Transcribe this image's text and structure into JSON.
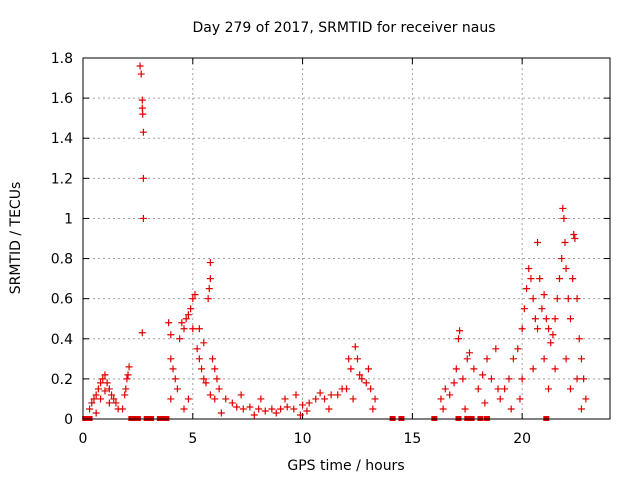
{
  "chart_data": {
    "type": "scatter",
    "title": "Day 279 of 2017, SRMTID for receiver naus",
    "xlabel": "GPS time / hours",
    "ylabel": "SRMTID / TECUs",
    "xlim": [
      0,
      24
    ],
    "ylim": [
      0,
      1.8
    ],
    "x_ticks": [
      0,
      5,
      10,
      15,
      20
    ],
    "y_ticks": [
      0,
      0.2,
      0.4,
      0.6,
      0.8,
      1,
      1.2,
      1.4,
      1.6,
      1.8
    ],
    "x_tick_labels": [
      "0",
      "5",
      "10",
      "15",
      "20"
    ],
    "y_tick_labels": [
      "0",
      "0.2",
      "0.4",
      "0.6",
      "0.8",
      "1",
      "1.2",
      "1.4",
      "1.6",
      "1.8"
    ],
    "grid": true,
    "marker": "+",
    "marker_color": "#e00000",
    "series": [
      {
        "name": "SRMTID",
        "points": [
          [
            0.3,
            0.05
          ],
          [
            0.4,
            0.08
          ],
          [
            0.5,
            0.1
          ],
          [
            0.6,
            0.12
          ],
          [
            0.7,
            0.15
          ],
          [
            0.8,
            0.18
          ],
          [
            0.9,
            0.2
          ],
          [
            1.0,
            0.22
          ],
          [
            1.1,
            0.18
          ],
          [
            1.2,
            0.15
          ],
          [
            1.3,
            0.12
          ],
          [
            1.4,
            0.1
          ],
          [
            1.5,
            0.08
          ],
          [
            1.6,
            0.05
          ],
          [
            0.6,
            0.03
          ],
          [
            0.8,
            0.1
          ],
          [
            1.0,
            0.14
          ],
          [
            1.2,
            0.08
          ],
          [
            1.8,
            0.05
          ],
          [
            1.9,
            0.12
          ],
          [
            2.0,
            0.2
          ],
          [
            2.1,
            0.26
          ],
          [
            1.95,
            0.15
          ],
          [
            2.05,
            0.22
          ],
          [
            2.6,
            1.76
          ],
          [
            2.65,
            1.72
          ],
          [
            2.7,
            1.59
          ],
          [
            2.7,
            1.55
          ],
          [
            2.72,
            1.52
          ],
          [
            2.75,
            1.43
          ],
          [
            2.75,
            1.2
          ],
          [
            2.75,
            1.0
          ],
          [
            2.7,
            0.43
          ],
          [
            3.9,
            0.48
          ],
          [
            4.0,
            0.42
          ],
          [
            4.0,
            0.3
          ],
          [
            4.1,
            0.25
          ],
          [
            4.2,
            0.2
          ],
          [
            4.3,
            0.15
          ],
          [
            4.0,
            0.1
          ],
          [
            4.4,
            0.4
          ],
          [
            4.5,
            0.48
          ],
          [
            4.6,
            0.45
          ],
          [
            4.7,
            0.5
          ],
          [
            4.8,
            0.52
          ],
          [
            4.9,
            0.55
          ],
          [
            5.0,
            0.6
          ],
          [
            5.1,
            0.62
          ],
          [
            5.0,
            0.45
          ],
          [
            5.2,
            0.35
          ],
          [
            5.3,
            0.3
          ],
          [
            5.4,
            0.25
          ],
          [
            5.5,
            0.2
          ],
          [
            5.6,
            0.18
          ],
          [
            5.5,
            0.38
          ],
          [
            5.3,
            0.45
          ],
          [
            4.8,
            0.1
          ],
          [
            4.6,
            0.05
          ],
          [
            5.8,
            0.78
          ],
          [
            5.8,
            0.7
          ],
          [
            5.75,
            0.65
          ],
          [
            5.7,
            0.6
          ],
          [
            5.9,
            0.3
          ],
          [
            6.0,
            0.25
          ],
          [
            6.1,
            0.2
          ],
          [
            6.2,
            0.15
          ],
          [
            5.8,
            0.12
          ],
          [
            6.0,
            0.1
          ],
          [
            6.5,
            0.1
          ],
          [
            6.8,
            0.08
          ],
          [
            7.0,
            0.06
          ],
          [
            7.3,
            0.05
          ],
          [
            7.6,
            0.06
          ],
          [
            8.0,
            0.05
          ],
          [
            8.3,
            0.04
          ],
          [
            8.6,
            0.05
          ],
          [
            9.0,
            0.05
          ],
          [
            9.3,
            0.06
          ],
          [
            9.6,
            0.05
          ],
          [
            10.0,
            0.07
          ],
          [
            10.3,
            0.08
          ],
          [
            10.6,
            0.1
          ],
          [
            11.0,
            0.1
          ],
          [
            11.3,
            0.12
          ],
          [
            11.6,
            0.12
          ],
          [
            12.0,
            0.15
          ],
          [
            12.2,
            0.25
          ],
          [
            12.4,
            0.36
          ],
          [
            12.5,
            0.3
          ],
          [
            12.7,
            0.2
          ],
          [
            12.9,
            0.18
          ],
          [
            13.1,
            0.15
          ],
          [
            13.3,
            0.1
          ],
          [
            7.2,
            0.12
          ],
          [
            8.1,
            0.1
          ],
          [
            9.2,
            0.1
          ],
          [
            9.7,
            0.12
          ],
          [
            10.2,
            0.04
          ],
          [
            11.2,
            0.05
          ],
          [
            12.3,
            0.1
          ],
          [
            13.2,
            0.05
          ],
          [
            6.3,
            0.03
          ],
          [
            7.8,
            0.02
          ],
          [
            8.8,
            0.03
          ],
          [
            9.9,
            0.02
          ],
          [
            10.8,
            0.13
          ],
          [
            11.8,
            0.15
          ],
          [
            12.1,
            0.3
          ],
          [
            12.6,
            0.22
          ],
          [
            13.0,
            0.25
          ],
          [
            16.3,
            0.1
          ],
          [
            16.5,
            0.15
          ],
          [
            16.7,
            0.12
          ],
          [
            16.9,
            0.18
          ],
          [
            17.0,
            0.25
          ],
          [
            17.1,
            0.4
          ],
          [
            17.15,
            0.44
          ],
          [
            17.3,
            0.2
          ],
          [
            17.5,
            0.3
          ],
          [
            17.6,
            0.33
          ],
          [
            17.8,
            0.25
          ],
          [
            18.0,
            0.15
          ],
          [
            18.2,
            0.22
          ],
          [
            18.4,
            0.3
          ],
          [
            18.6,
            0.2
          ],
          [
            18.8,
            0.35
          ],
          [
            18.9,
            0.15
          ],
          [
            16.4,
            0.05
          ],
          [
            17.4,
            0.05
          ],
          [
            18.3,
            0.08
          ],
          [
            19.0,
            0.1
          ],
          [
            19.2,
            0.15
          ],
          [
            19.4,
            0.2
          ],
          [
            19.6,
            0.3
          ],
          [
            19.8,
            0.35
          ],
          [
            20.0,
            0.45
          ],
          [
            20.1,
            0.55
          ],
          [
            20.2,
            0.65
          ],
          [
            20.3,
            0.75
          ],
          [
            20.4,
            0.7
          ],
          [
            20.5,
            0.6
          ],
          [
            20.6,
            0.5
          ],
          [
            20.7,
            0.45
          ],
          [
            20.7,
            0.88
          ],
          [
            20.8,
            0.7
          ],
          [
            20.9,
            0.55
          ],
          [
            21.0,
            0.62
          ],
          [
            21.1,
            0.5
          ],
          [
            21.2,
            0.45
          ],
          [
            21.3,
            0.38
          ],
          [
            21.4,
            0.42
          ],
          [
            21.5,
            0.5
          ],
          [
            21.6,
            0.6
          ],
          [
            21.7,
            0.7
          ],
          [
            21.8,
            0.8
          ],
          [
            21.85,
            1.05
          ],
          [
            21.9,
            1.0
          ],
          [
            21.95,
            0.88
          ],
          [
            22.0,
            0.75
          ],
          [
            22.1,
            0.6
          ],
          [
            22.2,
            0.5
          ],
          [
            22.3,
            0.7
          ],
          [
            22.35,
            0.92
          ],
          [
            22.4,
            0.9
          ],
          [
            22.5,
            0.6
          ],
          [
            22.6,
            0.4
          ],
          [
            22.7,
            0.3
          ],
          [
            22.8,
            0.2
          ],
          [
            22.9,
            0.1
          ],
          [
            19.5,
            0.05
          ],
          [
            20.0,
            0.2
          ],
          [
            20.5,
            0.25
          ],
          [
            21.0,
            0.3
          ],
          [
            21.5,
            0.25
          ],
          [
            22.0,
            0.3
          ],
          [
            22.5,
            0.2
          ],
          [
            22.7,
            0.05
          ],
          [
            19.9,
            0.1
          ],
          [
            21.2,
            0.15
          ],
          [
            22.2,
            0.15
          ]
        ]
      }
    ],
    "zero_markers": [
      0.1,
      0.2,
      0.3,
      2.2,
      2.3,
      2.5,
      2.9,
      3.0,
      3.1,
      3.5,
      3.6,
      3.8,
      14.1,
      14.5,
      16.0,
      17.1,
      17.5,
      17.7,
      18.1,
      18.4,
      21.1
    ]
  }
}
